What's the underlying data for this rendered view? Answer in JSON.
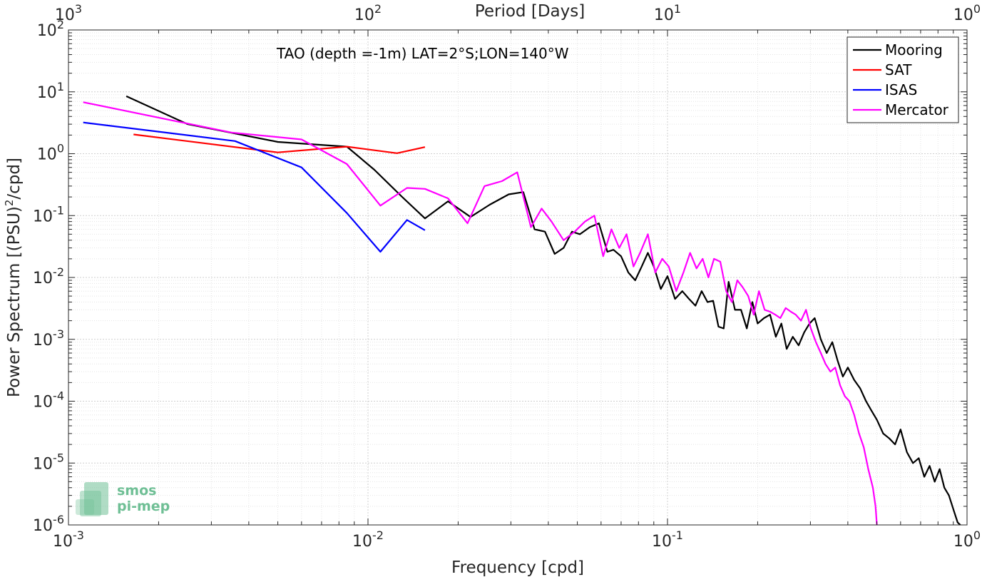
{
  "chart_data": {
    "type": "line",
    "title": "",
    "annotation": "TAO (depth =-1m) LAT=2°S;LON=140°W",
    "xlabel": "Frequency [cpd]",
    "ylabel": "Power Spectrum [(PSU)^2/cpd]",
    "top_axis_label": "Period [Days]",
    "x_scale": "log",
    "y_scale": "log",
    "xlim": [
      0.001,
      1
    ],
    "ylim": [
      1e-06,
      100
    ],
    "grid": true,
    "legend_position": "top-right",
    "x_ticks": [
      {
        "base": "10",
        "exp": "-3",
        "value": 0.001
      },
      {
        "base": "10",
        "exp": "-2",
        "value": 0.01
      },
      {
        "base": "10",
        "exp": "-1",
        "value": 0.1
      },
      {
        "base": "10",
        "exp": "0",
        "value": 1
      }
    ],
    "y_ticks": [
      {
        "base": "10",
        "exp": "-6",
        "value": 1e-06
      },
      {
        "base": "10",
        "exp": "-5",
        "value": 1e-05
      },
      {
        "base": "10",
        "exp": "-4",
        "value": 0.0001
      },
      {
        "base": "10",
        "exp": "-3",
        "value": 0.001
      },
      {
        "base": "10",
        "exp": "-2",
        "value": 0.01
      },
      {
        "base": "10",
        "exp": "-1",
        "value": 0.1
      },
      {
        "base": "10",
        "exp": "0",
        "value": 1
      },
      {
        "base": "10",
        "exp": "1",
        "value": 10
      },
      {
        "base": "10",
        "exp": "2",
        "value": 100
      }
    ],
    "top_ticks": [
      {
        "base": "10",
        "exp": "3",
        "freq": 0.001
      },
      {
        "base": "10",
        "exp": "2",
        "freq": 0.01
      },
      {
        "base": "10",
        "exp": "1",
        "freq": 0.1
      },
      {
        "base": "10",
        "exp": "0",
        "freq": 1
      }
    ],
    "series": [
      {
        "name": "Mooring",
        "color": "#000000",
        "x": [
          0.00156,
          0.0025,
          0.005,
          0.0085,
          0.0105,
          0.013,
          0.0155,
          0.0185,
          0.022,
          0.0255,
          0.0295,
          0.033,
          0.036,
          0.039,
          0.042,
          0.045,
          0.048,
          0.051,
          0.055,
          0.059,
          0.063,
          0.066,
          0.07,
          0.074,
          0.078,
          0.082,
          0.086,
          0.09,
          0.095,
          0.1,
          0.106,
          0.112,
          0.118,
          0.124,
          0.13,
          0.136,
          0.142,
          0.148,
          0.154,
          0.16,
          0.168,
          0.176,
          0.184,
          0.192,
          0.2,
          0.21,
          0.22,
          0.23,
          0.24,
          0.25,
          0.262,
          0.274,
          0.286,
          0.298,
          0.31,
          0.325,
          0.34,
          0.355,
          0.37,
          0.385,
          0.4,
          0.42,
          0.44,
          0.46,
          0.48,
          0.5,
          0.525,
          0.55,
          0.575,
          0.6,
          0.63,
          0.66,
          0.69,
          0.72,
          0.75,
          0.78,
          0.81,
          0.84,
          0.87,
          0.9,
          0.93,
          0.95
        ],
        "y": [
          8.5,
          3.0,
          1.55,
          1.3,
          0.55,
          0.2,
          0.09,
          0.17,
          0.095,
          0.15,
          0.22,
          0.24,
          0.06,
          0.055,
          0.024,
          0.03,
          0.055,
          0.05,
          0.065,
          0.075,
          0.026,
          0.028,
          0.022,
          0.012,
          0.009,
          0.015,
          0.025,
          0.015,
          0.0065,
          0.0105,
          0.0045,
          0.006,
          0.0045,
          0.0035,
          0.006,
          0.004,
          0.0042,
          0.0016,
          0.0015,
          0.0085,
          0.003,
          0.003,
          0.0015,
          0.004,
          0.0018,
          0.0022,
          0.0025,
          0.0011,
          0.0018,
          0.0007,
          0.0011,
          0.0008,
          0.0013,
          0.0018,
          0.0022,
          0.001,
          0.0006,
          0.0009,
          0.00045,
          0.00025,
          0.00035,
          0.00022,
          0.00016,
          0.0001,
          7e-05,
          5e-05,
          3e-05,
          2.5e-05,
          2e-05,
          3.5e-05,
          1.5e-05,
          1e-05,
          1.2e-05,
          6e-06,
          9e-06,
          5e-06,
          8e-06,
          4e-06,
          3e-06,
          1.8e-06,
          1.1e-06,
          1e-06
        ]
      },
      {
        "name": "SAT",
        "color": "#ff0000",
        "x": [
          0.00165,
          0.005,
          0.0085,
          0.0125,
          0.0155
        ],
        "y": [
          2.05,
          1.05,
          1.3,
          1.02,
          1.28
        ]
      },
      {
        "name": "ISAS",
        "color": "#0000ff",
        "x": [
          0.00112,
          0.0036,
          0.006,
          0.0085,
          0.011,
          0.0135,
          0.0155
        ],
        "y": [
          3.2,
          1.6,
          0.6,
          0.11,
          0.026,
          0.085,
          0.058
        ]
      },
      {
        "name": "Mercator",
        "color": "#ff00ff",
        "x": [
          0.00112,
          0.0035,
          0.006,
          0.0085,
          0.011,
          0.0135,
          0.0155,
          0.0185,
          0.0215,
          0.0245,
          0.028,
          0.0315,
          0.035,
          0.038,
          0.041,
          0.045,
          0.049,
          0.053,
          0.057,
          0.061,
          0.065,
          0.069,
          0.073,
          0.077,
          0.081,
          0.086,
          0.091,
          0.096,
          0.101,
          0.107,
          0.113,
          0.119,
          0.125,
          0.131,
          0.137,
          0.143,
          0.15,
          0.157,
          0.164,
          0.171,
          0.178,
          0.186,
          0.194,
          0.202,
          0.211,
          0.22,
          0.229,
          0.238,
          0.248,
          0.258,
          0.268,
          0.279,
          0.29,
          0.301,
          0.313,
          0.325,
          0.337,
          0.35,
          0.363,
          0.377,
          0.391,
          0.405,
          0.42,
          0.436,
          0.452,
          0.468,
          0.485,
          0.495,
          0.5
        ],
        "y": [
          6.8,
          2.2,
          1.7,
          0.68,
          0.145,
          0.28,
          0.27,
          0.19,
          0.075,
          0.3,
          0.36,
          0.5,
          0.065,
          0.13,
          0.08,
          0.04,
          0.055,
          0.08,
          0.1,
          0.022,
          0.06,
          0.03,
          0.05,
          0.015,
          0.025,
          0.05,
          0.012,
          0.02,
          0.015,
          0.006,
          0.012,
          0.025,
          0.014,
          0.02,
          0.01,
          0.02,
          0.018,
          0.006,
          0.004,
          0.009,
          0.007,
          0.005,
          0.0025,
          0.006,
          0.003,
          0.0028,
          0.0025,
          0.0022,
          0.0032,
          0.0028,
          0.0025,
          0.002,
          0.003,
          0.0015,
          0.0009,
          0.0006,
          0.0004,
          0.0003,
          0.00035,
          0.00018,
          0.00012,
          0.0001,
          6e-05,
          3e-05,
          1.8e-05,
          8e-06,
          4e-06,
          2e-06,
          1e-06
        ]
      }
    ]
  },
  "watermark": {
    "line1": "smos",
    "line2": "pi-mep",
    "color": "#6fbf95"
  }
}
